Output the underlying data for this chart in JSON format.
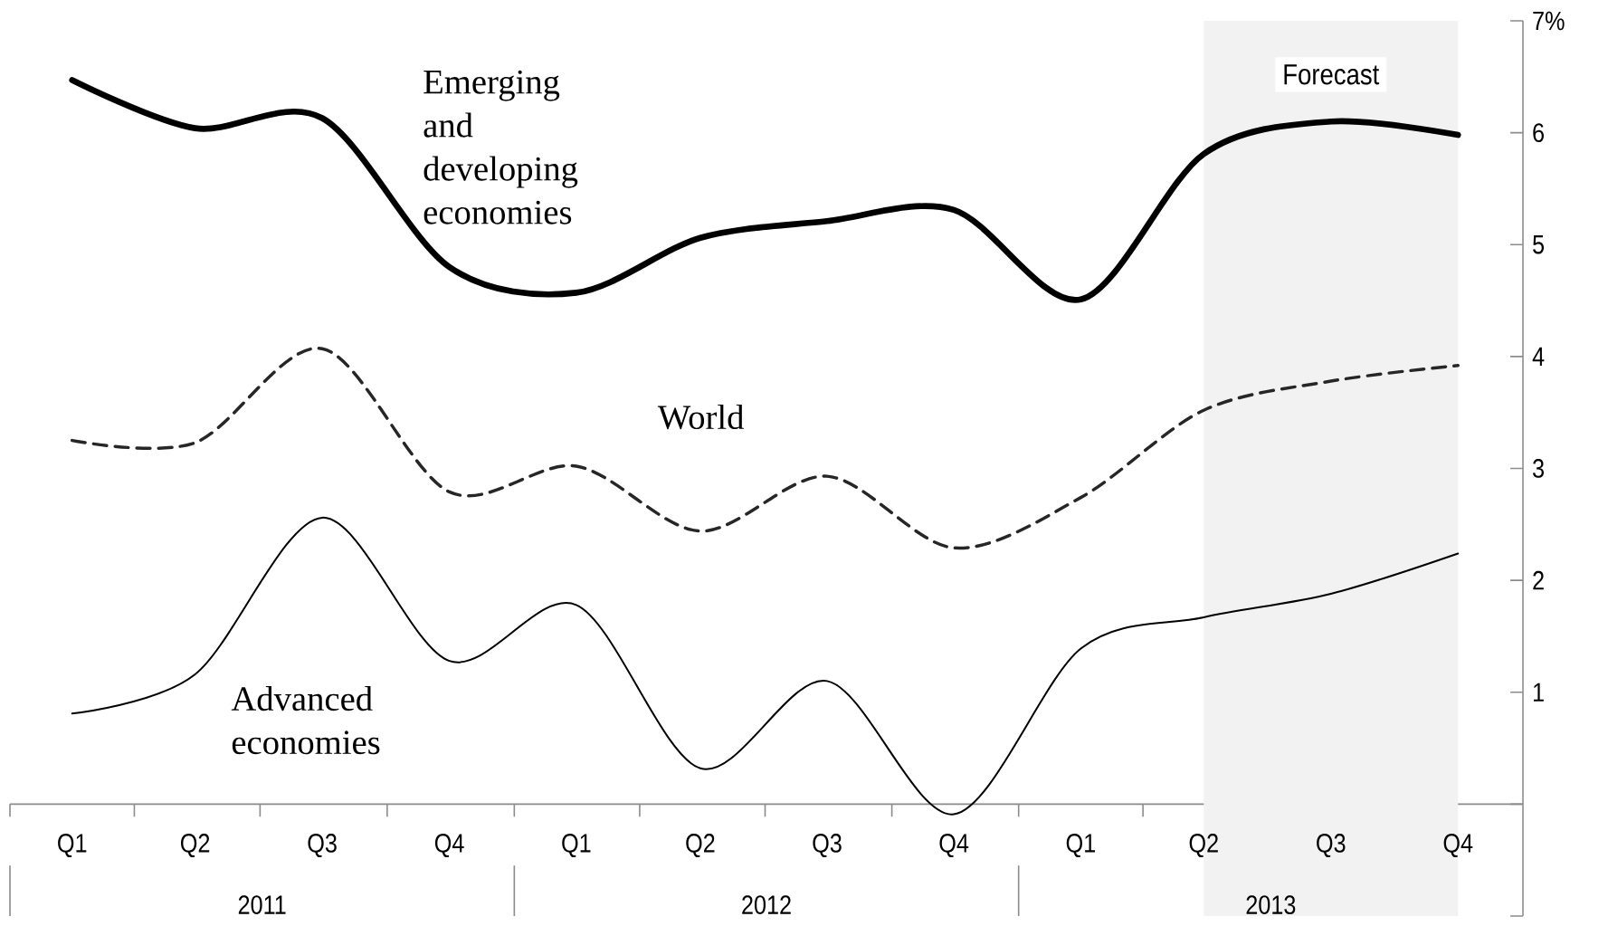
{
  "chart_data": {
    "type": "line",
    "x": [
      "2011-02-15",
      "2011-05-15",
      "2011-08-15",
      "2011-11-15",
      "2012-02-15",
      "2012-05-15",
      "2012-08-15",
      "2012-11-15",
      "2013-02-15",
      "2013-05-15",
      "2013-08-15",
      "2013-11-15"
    ],
    "series": [
      {
        "name": "Emerging and developing economies",
        "color": "#000000",
        "line_style": "solid",
        "values": [
          6.47,
          6.04,
          6.13,
          4.8,
          4.57,
          5.06,
          5.21,
          5.31,
          4.51,
          5.81,
          6.1,
          5.98
        ]
      },
      {
        "name": "World",
        "color": "#262626",
        "line_style": "dashed",
        "values": [
          3.25,
          3.23,
          4.07,
          2.79,
          3.02,
          2.44,
          2.93,
          2.29,
          2.74,
          3.52,
          3.78,
          3.92
        ]
      },
      {
        "name": "Advanced economies",
        "color": "#000000",
        "line_style": "solid",
        "values": [
          0.81,
          1.16,
          2.56,
          1.28,
          1.78,
          0.32,
          1.1,
          -0.09,
          1.39,
          1.67,
          1.88,
          2.24
        ]
      }
    ],
    "xlim": [
      "2011-01-01",
      "2014-01-01"
    ],
    "xticks": [
      {
        "value": "2011-01-01",
        "label": null
      },
      {
        "value": "2011-02-15",
        "label": "Q1"
      },
      {
        "value": "2011-04-01",
        "label": null
      },
      {
        "value": "2011-05-15",
        "label": "Q2"
      },
      {
        "value": "2011-07-01",
        "label": null
      },
      {
        "value": "2011-08-15",
        "label": "Q3"
      },
      {
        "value": "2011-10-01",
        "label": null
      },
      {
        "value": "2011-11-15",
        "label": "Q4"
      },
      {
        "value": "2012-01-01",
        "label": null
      },
      {
        "value": "2012-02-15",
        "label": "Q1"
      },
      {
        "value": "2012-04-01",
        "label": null
      },
      {
        "value": "2012-05-15",
        "label": "Q2"
      },
      {
        "value": "2012-07-01",
        "label": null
      },
      {
        "value": "2012-08-15",
        "label": "Q3"
      },
      {
        "value": "2012-10-01",
        "label": null
      },
      {
        "value": "2012-11-15",
        "label": "Q4"
      },
      {
        "value": "2013-01-01",
        "label": null
      },
      {
        "value": "2013-02-15",
        "label": "Q1"
      },
      {
        "value": "2013-04-01",
        "label": null
      },
      {
        "value": "2013-05-15",
        "label": "Q2"
      },
      {
        "value": "2013-07-01",
        "label": null
      },
      {
        "value": "2013-08-15",
        "label": "Q3"
      },
      {
        "value": "2013-10-01",
        "label": null
      },
      {
        "value": "2013-11-15",
        "label": "Q4"
      }
    ],
    "ylim": [
      -1,
      7
    ],
    "yticks": [
      {
        "value": -1,
        "label": null
      },
      {
        "value": 0,
        "label": null
      },
      1,
      2,
      3,
      4,
      5,
      6,
      {
        "value": 7,
        "label": "7%"
      }
    ],
    "bands": [
      {
        "axis": "x",
        "from": "2013-05-15",
        "to": "2013-11-15",
        "label": "Forecast",
        "color": "#f2f2f2"
      }
    ],
    "annotations": [
      "2011",
      "2012",
      "2013"
    ],
    "grid": false,
    "marker": "none"
  }
}
